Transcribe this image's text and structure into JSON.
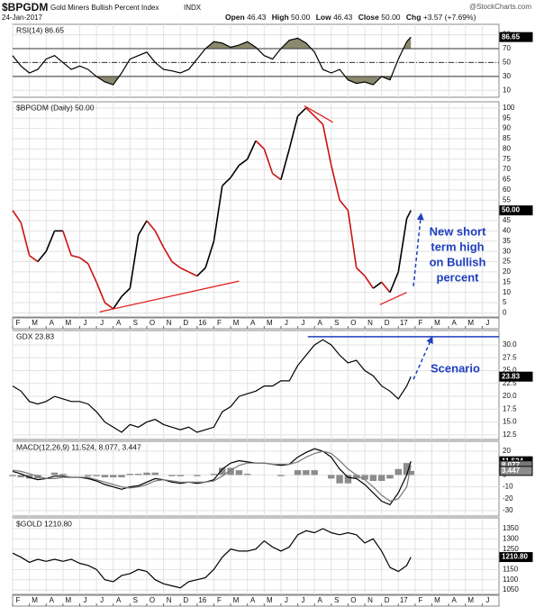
{
  "header": {
    "symbol": "$BPGDM",
    "name": "Gold Miners Bullish Percent Index",
    "exchange": "INDX",
    "date": "24-Jan-2017",
    "quote": [
      [
        "Open",
        "46.43"
      ],
      [
        "High",
        "50.00"
      ],
      [
        "Low",
        "46.43"
      ],
      [
        "Close",
        "50.00"
      ],
      [
        "Chg",
        "+3.57 (+7.69%)"
      ]
    ],
    "watermark": "@StockCharts.com"
  },
  "x_axis": {
    "xlim": [
      0,
      29
    ],
    "xticks": [
      {
        "value": 0,
        "label": "F"
      },
      {
        "value": 1,
        "label": "M"
      },
      {
        "value": 2,
        "label": "A"
      },
      {
        "value": 3,
        "label": "M"
      },
      {
        "value": 4,
        "label": "J"
      },
      {
        "value": 5,
        "label": "J"
      },
      {
        "value": 6,
        "label": "A"
      },
      {
        "value": 7,
        "label": "S"
      },
      {
        "value": 8,
        "label": "O"
      },
      {
        "value": 9,
        "label": "N"
      },
      {
        "value": 10,
        "label": "D"
      },
      {
        "value": 11,
        "label": "16"
      },
      {
        "value": 12,
        "label": "F"
      },
      {
        "value": 13,
        "label": "M"
      },
      {
        "value": 14,
        "label": "A"
      },
      {
        "value": 15,
        "label": "M"
      },
      {
        "value": 16,
        "label": "J"
      },
      {
        "value": 17,
        "label": "J"
      },
      {
        "value": 18,
        "label": "A"
      },
      {
        "value": 19,
        "label": "S"
      },
      {
        "value": 20,
        "label": "O"
      },
      {
        "value": 21,
        "label": "N"
      },
      {
        "value": 22,
        "label": "D"
      },
      {
        "value": 23,
        "label": "17"
      },
      {
        "value": 24,
        "label": "F"
      },
      {
        "value": 25,
        "label": "M"
      },
      {
        "value": 26,
        "label": "A"
      },
      {
        "value": 27,
        "label": "M"
      },
      {
        "value": 28,
        "label": "J"
      }
    ]
  },
  "chart_data": [
    {
      "type": "line",
      "title": "RSI(14) 86.65",
      "last_label": "86.65",
      "color": "#000000",
      "x": [
        0,
        0.5,
        1,
        1.5,
        2,
        2.5,
        3,
        3.5,
        4,
        4.5,
        5,
        5.5,
        6,
        6.5,
        7,
        7.5,
        8,
        8.5,
        9,
        9.5,
        10,
        10.5,
        11,
        11.5,
        12,
        12.5,
        13,
        13.5,
        14,
        14.5,
        15,
        15.5,
        16,
        16.5,
        17,
        17.5,
        18,
        18.5,
        19,
        19.5,
        20,
        20.5,
        21,
        21.5,
        22,
        22.5,
        23,
        23.5,
        23.75
      ],
      "values": [
        60,
        45,
        35,
        40,
        55,
        60,
        50,
        40,
        45,
        40,
        30,
        22,
        18,
        35,
        55,
        60,
        65,
        50,
        40,
        38,
        35,
        40,
        55,
        70,
        80,
        78,
        72,
        75,
        80,
        72,
        60,
        55,
        70,
        82,
        85,
        78,
        65,
        40,
        35,
        40,
        25,
        20,
        22,
        18,
        30,
        25,
        55,
        80,
        86.65
      ],
      "ylim": [
        0,
        105
      ],
      "yticks": [
        10,
        30,
        50,
        70,
        90
      ],
      "overbought": 70,
      "oversold": 30,
      "midline": 50,
      "fill_color": "#8c8a6e"
    },
    {
      "type": "line",
      "title": "$BPGDM (Daily) 50.00",
      "last_label": "50.00",
      "up_color": "#000000",
      "down_color": "#cc1111",
      "x": [
        0,
        0.5,
        1,
        1.5,
        2,
        2.5,
        3,
        3.5,
        4,
        4.5,
        5,
        5.5,
        6,
        6.5,
        7,
        7.5,
        8,
        8.5,
        9,
        9.5,
        10,
        10.5,
        11,
        11.5,
        12,
        12.5,
        13,
        13.5,
        14,
        14.5,
        15,
        15.5,
        16,
        16.5,
        17,
        17.5,
        18,
        18.5,
        19,
        19.5,
        20,
        20.5,
        21,
        21.5,
        22,
        22.5,
        23,
        23.5,
        23.75
      ],
      "values": [
        50,
        44,
        28,
        25,
        30,
        40,
        40,
        28,
        27,
        24,
        15,
        5,
        2,
        8,
        12,
        38,
        45,
        40,
        32,
        25,
        22,
        20,
        18,
        22,
        35,
        62,
        66,
        72,
        75,
        84,
        80,
        68,
        65,
        80,
        96,
        100,
        96,
        92,
        72,
        55,
        50,
        22,
        18,
        12,
        15,
        10,
        20,
        46,
        50
      ],
      "ylim": [
        -2,
        103
      ],
      "yticks": [
        0,
        5,
        10,
        15,
        20,
        25,
        30,
        35,
        40,
        45,
        50,
        55,
        60,
        65,
        70,
        75,
        80,
        85,
        90,
        95,
        100
      ],
      "trendlines": [
        [
          5.2,
          0.5,
          13.5,
          15.5
        ],
        [
          17.4,
          101,
          19.1,
          93
        ],
        [
          21.9,
          4,
          23.5,
          10
        ]
      ],
      "trendline_color": "#e02020",
      "arrow": [
        23.9,
        13,
        24.35,
        48
      ],
      "annotation_color": "#1f3fbf",
      "annotation_lines": [
        "New short",
        "term high",
        "on Bullish",
        "percent"
      ]
    },
    {
      "type": "line",
      "title": "GDX 23.83",
      "last_label": "23.83",
      "color": "#000000",
      "x": [
        0,
        0.5,
        1,
        1.5,
        2,
        2.5,
        3,
        3.5,
        4,
        4.5,
        5,
        5.5,
        6,
        6.5,
        7,
        7.5,
        8,
        8.5,
        9,
        9.5,
        10,
        10.5,
        11,
        11.5,
        12,
        12.5,
        13,
        13.5,
        14,
        14.5,
        15,
        15.5,
        16,
        16.5,
        17,
        17.5,
        18,
        18.5,
        19,
        19.5,
        20,
        20.5,
        21,
        21.5,
        22,
        22.5,
        23,
        23.5,
        23.75
      ],
      "values": [
        22,
        21,
        19,
        18.5,
        19,
        20,
        19.5,
        19,
        19,
        18.5,
        17,
        15,
        14,
        13,
        14.5,
        14,
        15,
        15.5,
        14.5,
        14,
        13.5,
        14,
        13,
        13.5,
        14,
        17,
        18,
        20,
        20.5,
        21,
        22,
        22,
        23,
        23,
        26,
        28,
        30,
        31,
        30,
        28,
        26.5,
        27,
        25,
        24,
        22,
        21,
        19.5,
        22,
        23.83
      ],
      "ylim": [
        11.6,
        32.8
      ],
      "yticks": [
        12.5,
        {
          "value": 15,
          "label": "15.0"
        },
        17.5,
        {
          "value": 20,
          "label": "20.0"
        },
        22.5,
        {
          "value": 25,
          "label": "25.0"
        },
        27.5,
        {
          "value": 30,
          "label": "30.0"
        }
      ],
      "level_line": [
        17.6,
        31.6,
        29
      ],
      "arrow": [
        23.9,
        23.3,
        25,
        31.4
      ],
      "annotation_color": "#1f3fbf",
      "annotation": "Scenario"
    },
    {
      "type": "line",
      "title": "MACD(12,26,9) 11.524, 8.077, 3.447",
      "x": [
        0,
        0.5,
        1,
        1.5,
        2,
        2.5,
        3,
        3.5,
        4,
        4.5,
        5,
        5.5,
        6,
        6.5,
        7,
        7.5,
        8,
        8.5,
        9,
        9.5,
        10,
        10.5,
        11,
        11.5,
        12,
        12.5,
        13,
        13.5,
        14,
        14.5,
        15,
        15.5,
        16,
        16.5,
        17,
        17.5,
        18,
        18.5,
        19,
        19.5,
        20,
        20.5,
        21,
        21.5,
        22,
        22.5,
        23,
        23.5,
        23.75
      ],
      "series": [
        {
          "type": "line",
          "color": "#000000",
          "last_label": "11.524",
          "values": [
            3,
            1,
            -2,
            -4,
            -3,
            -1,
            -1,
            -2,
            -2,
            -3,
            -5,
            -8,
            -10,
            -12,
            -10,
            -9,
            -6,
            -3,
            -4,
            -6,
            -7,
            -6,
            -7,
            -6,
            -4,
            5,
            10,
            12,
            11,
            10,
            10,
            9,
            8,
            9,
            15,
            19,
            22,
            20,
            15,
            5,
            -2,
            -3,
            -8,
            -15,
            -22,
            -25,
            -15,
            0,
            11.524
          ]
        },
        {
          "type": "line",
          "color": "#777777",
          "last_label": "8.077",
          "values": [
            4,
            3,
            1,
            -1,
            -3,
            -3,
            -2,
            -2,
            -2,
            -2,
            -4,
            -6,
            -8,
            -10,
            -11,
            -10,
            -8,
            -5,
            -4,
            -5,
            -6,
            -6,
            -6,
            -6,
            -5,
            -1,
            4,
            8,
            10,
            10,
            10,
            9,
            9,
            9,
            11,
            15,
            18,
            20,
            18,
            12,
            5,
            0,
            -4,
            -10,
            -17,
            -22,
            -20,
            -10,
            8.077
          ]
        },
        {
          "type": "bar",
          "color": "#8c8c8c",
          "last_label": "3.447",
          "values": [
            -1,
            -2,
            -3,
            -3,
            0,
            2,
            1,
            0,
            0,
            -1,
            -1,
            -2,
            -2,
            -2,
            1,
            1,
            2,
            2,
            0,
            -1,
            -1,
            0,
            -1,
            0,
            1,
            6,
            6,
            4,
            1,
            0,
            0,
            0,
            -1,
            0,
            4,
            4,
            4,
            0,
            -3,
            -7,
            -7,
            -3,
            -4,
            -5,
            -5,
            -3,
            5,
            10,
            3.447
          ]
        }
      ],
      "ylim": [
        -34.5,
        28.3
      ],
      "yticks": [
        20,
        10,
        0,
        -10,
        -20,
        -30
      ]
    },
    {
      "type": "line",
      "title": "$GOLD 1210.80",
      "last_label": "1210.80",
      "color": "#000000",
      "x": [
        0,
        0.5,
        1,
        1.5,
        2,
        2.5,
        3,
        3.5,
        4,
        4.5,
        5,
        5.5,
        6,
        6.5,
        7,
        7.5,
        8,
        8.5,
        9,
        9.5,
        10,
        10.5,
        11,
        11.5,
        12,
        12.5,
        13,
        13.5,
        14,
        14.5,
        15,
        15.5,
        16,
        16.5,
        17,
        17.5,
        18,
        18.5,
        19,
        19.5,
        20,
        20.5,
        21,
        21.5,
        22,
        22.5,
        23,
        23.5,
        23.75
      ],
      "values": [
        1230,
        1210,
        1185,
        1200,
        1190,
        1200,
        1190,
        1200,
        1180,
        1170,
        1150,
        1100,
        1090,
        1120,
        1130,
        1150,
        1140,
        1100,
        1080,
        1070,
        1060,
        1090,
        1100,
        1110,
        1150,
        1210,
        1250,
        1240,
        1240,
        1250,
        1290,
        1260,
        1240,
        1260,
        1320,
        1340,
        1330,
        1350,
        1330,
        1320,
        1330,
        1320,
        1280,
        1300,
        1240,
        1160,
        1140,
        1170,
        1210.8
      ],
      "ylim": [
        1028,
        1403
      ],
      "yticks": [
        1050,
        1100,
        1150,
        1200,
        1250,
        1300,
        1350
      ]
    }
  ]
}
